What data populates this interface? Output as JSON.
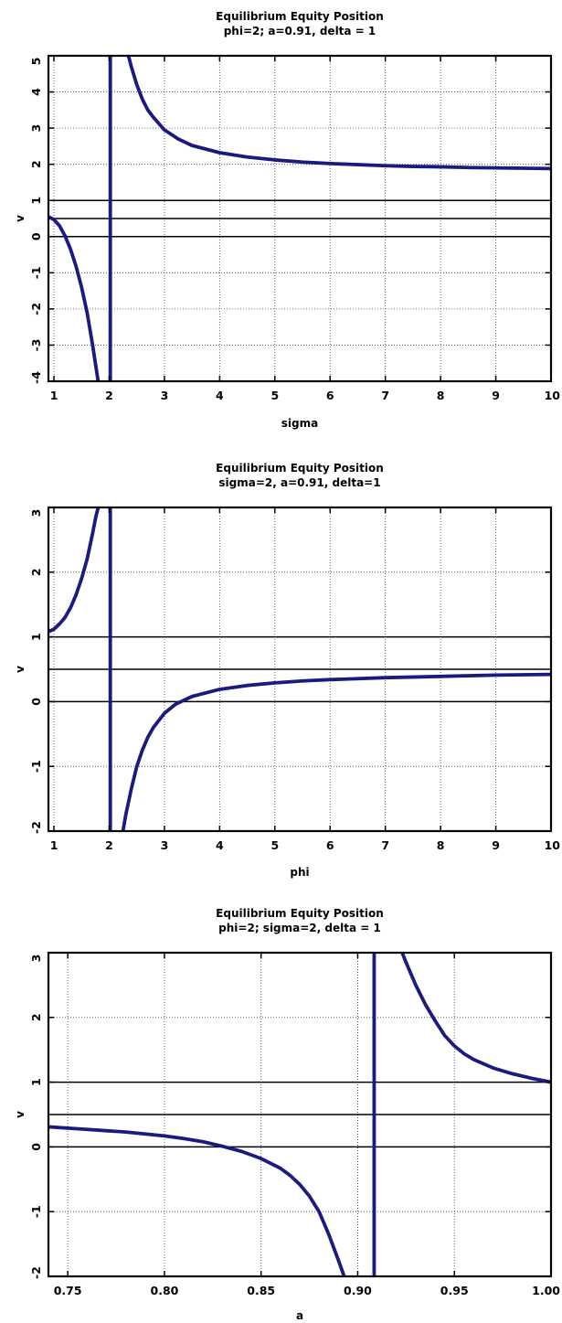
{
  "chart_data": [
    {
      "type": "line",
      "title": "Equilibrium Equity Position",
      "subtitle": "phi=2; a=0.91, delta = 1",
      "xlabel": "sigma",
      "ylabel": "v",
      "xlim": [
        0.9,
        10
      ],
      "ylim": [
        -4,
        5
      ],
      "xticks": [
        1,
        2,
        3,
        4,
        5,
        6,
        7,
        8,
        9,
        10
      ],
      "xtick_labels": [
        "1",
        "2",
        "3",
        "4",
        "5",
        "6",
        "7",
        "8",
        "9",
        "10"
      ],
      "yticks": [
        -4,
        -3,
        -2,
        -1,
        0,
        1,
        2,
        3,
        4,
        5
      ],
      "ytick_labels": [
        "-4",
        "-3",
        "-2",
        "-1",
        "0",
        "1",
        "2",
        "3",
        "4",
        "5"
      ],
      "grid": true,
      "reference_lines": [
        0,
        0.5,
        1
      ],
      "vertical_asymptote": 2.02,
      "line_color": "#1a1a80",
      "series": [
        {
          "x": [
            0.9,
            1.0,
            1.1,
            1.2,
            1.3,
            1.4,
            1.5,
            1.6,
            1.7,
            1.75,
            1.8
          ],
          "y": [
            0.55,
            0.47,
            0.3,
            0.02,
            -0.35,
            -0.82,
            -1.4,
            -2.1,
            -3.0,
            -3.5,
            -4.0
          ]
        },
        {
          "x": [
            2.35,
            2.4,
            2.5,
            2.6,
            2.7,
            2.8,
            3.0,
            3.25,
            3.5,
            4.0,
            4.5,
            5.0,
            5.5,
            6.0,
            6.5,
            7.0,
            7.5,
            8.0,
            8.5,
            9.0,
            9.5,
            10.0
          ],
          "y": [
            5.0,
            4.7,
            4.2,
            3.8,
            3.5,
            3.3,
            2.95,
            2.7,
            2.52,
            2.32,
            2.2,
            2.12,
            2.06,
            2.02,
            1.99,
            1.96,
            1.94,
            1.93,
            1.91,
            1.9,
            1.89,
            1.88
          ]
        }
      ]
    },
    {
      "type": "line",
      "title": "Equilibrium Equity Position",
      "subtitle": "sigma=2, a=0.91, delta=1",
      "xlabel": "phi",
      "ylabel": "v",
      "xlim": [
        0.9,
        10
      ],
      "ylim": [
        -2,
        3
      ],
      "xticks": [
        1,
        2,
        3,
        4,
        5,
        6,
        7,
        8,
        9,
        10
      ],
      "xtick_labels": [
        "1",
        "2",
        "3",
        "4",
        "5",
        "6",
        "7",
        "8",
        "9",
        "10"
      ],
      "yticks": [
        -2,
        -1,
        0,
        1,
        2,
        3
      ],
      "ytick_labels": [
        "-2",
        "-1",
        "0",
        "1",
        "2",
        "3"
      ],
      "grid": true,
      "reference_lines": [
        0,
        0.5,
        1
      ],
      "vertical_asymptote": 2.02,
      "line_color": "#1a1a80",
      "series": [
        {
          "x": [
            0.9,
            1.0,
            1.1,
            1.2,
            1.3,
            1.4,
            1.5,
            1.6,
            1.7,
            1.75,
            1.8
          ],
          "y": [
            1.08,
            1.12,
            1.2,
            1.3,
            1.45,
            1.65,
            1.9,
            2.2,
            2.6,
            2.82,
            3.0
          ]
        },
        {
          "x": [
            2.25,
            2.3,
            2.4,
            2.5,
            2.6,
            2.7,
            2.8,
            3.0,
            3.2,
            3.5,
            4.0,
            4.5,
            5.0,
            5.5,
            6.0,
            7.0,
            8.0,
            9.0,
            10.0
          ],
          "y": [
            -2.0,
            -1.75,
            -1.35,
            -1.0,
            -0.75,
            -0.55,
            -0.4,
            -0.18,
            -0.04,
            0.08,
            0.19,
            0.25,
            0.29,
            0.32,
            0.34,
            0.37,
            0.39,
            0.41,
            0.42
          ]
        }
      ]
    },
    {
      "type": "line",
      "title": "Equilibrium Equity Position",
      "subtitle": "phi=2; sigma=2, delta = 1",
      "xlabel": "a",
      "ylabel": "v",
      "xlim": [
        0.74,
        1.0
      ],
      "ylim": [
        -2,
        3
      ],
      "xticks": [
        0.75,
        0.8,
        0.85,
        0.9,
        0.95,
        1.0
      ],
      "xtick_labels": [
        "0.75",
        "0.80",
        "0.85",
        "0.90",
        "0.95",
        "1.00"
      ],
      "extra_vgrid": [
        0.9
      ],
      "yticks": [
        -2,
        -1,
        0,
        1,
        2,
        3
      ],
      "ytick_labels": [
        "-2",
        "-1",
        "0",
        "1",
        "2",
        "3"
      ],
      "grid": true,
      "reference_lines": [
        0,
        0.5,
        1
      ],
      "vertical_asymptote": 0.9085,
      "line_color": "#1a1a80",
      "series": [
        {
          "x": [
            0.74,
            0.75,
            0.76,
            0.77,
            0.78,
            0.79,
            0.8,
            0.81,
            0.82,
            0.83,
            0.84,
            0.85,
            0.86,
            0.865,
            0.87,
            0.875,
            0.88,
            0.885,
            0.89,
            0.893
          ],
          "y": [
            0.31,
            0.29,
            0.27,
            0.25,
            0.23,
            0.2,
            0.17,
            0.13,
            0.08,
            0.01,
            -0.07,
            -0.18,
            -0.33,
            -0.44,
            -0.58,
            -0.76,
            -1.0,
            -1.35,
            -1.75,
            -2.0
          ]
        },
        {
          "x": [
            0.923,
            0.925,
            0.93,
            0.935,
            0.94,
            0.945,
            0.95,
            0.955,
            0.96,
            0.97,
            0.98,
            0.99,
            1.0
          ],
          "y": [
            3.0,
            2.85,
            2.5,
            2.2,
            1.95,
            1.72,
            1.56,
            1.44,
            1.35,
            1.22,
            1.13,
            1.06,
            1.0
          ]
        }
      ]
    }
  ]
}
